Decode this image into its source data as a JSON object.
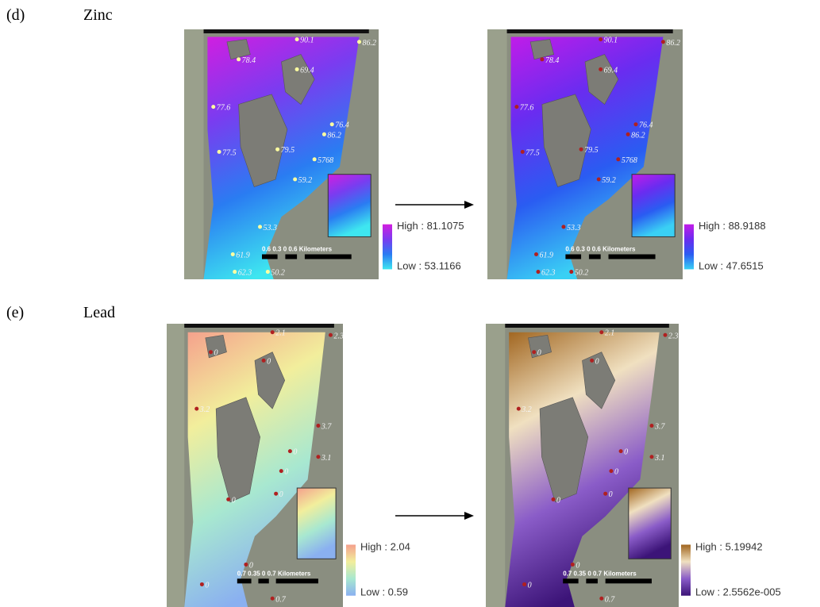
{
  "panels": [
    {
      "label": "(d)",
      "title": "Zinc",
      "scale": "0.6 0.3 0      0.6 Kilometers",
      "points": [
        "90.1",
        "86.2",
        "78.4",
        "69.4",
        "77.6",
        "76.4",
        "86.2",
        "77.5",
        "79.5",
        "5768",
        "59.2",
        "53.3",
        "61.9",
        "62.3",
        "50.2"
      ],
      "maps": [
        {
          "legend_high": "High : 81.1075",
          "legend_low": "Low : 53.1166",
          "colors": [
            "#d21ee0",
            "#7a3cf0",
            "#2a7cf2",
            "#3ee6f0"
          ]
        },
        {
          "legend_high": "High : 88.9188",
          "legend_low": "Low : 47.6515",
          "colors": [
            "#c21ce8",
            "#6a2cf0",
            "#2a5cf2",
            "#3ad0f4"
          ]
        }
      ]
    },
    {
      "label": "(e)",
      "title": "Lead",
      "scale": "0.7 0.35 0      0.7 Kilometers",
      "points": [
        "2.1",
        "2.3",
        "0",
        "0",
        "3.2",
        "3.7",
        "0",
        "3.1",
        "0",
        "0",
        "0",
        "0",
        "0",
        "0.7"
      ],
      "maps": [
        {
          "legend_high": "High : 2.04",
          "legend_low": "Low : 0.59",
          "colors": [
            "#f4a08c",
            "#f2ee9c",
            "#a8e8d0",
            "#8ab0f0"
          ]
        },
        {
          "legend_high": "High : 5.19942",
          "legend_low": "Low : 2.5562e-005",
          "colors": [
            "#a0641e",
            "#f0e0c0",
            "#8a5cc8",
            "#3c1478"
          ]
        }
      ]
    }
  ]
}
